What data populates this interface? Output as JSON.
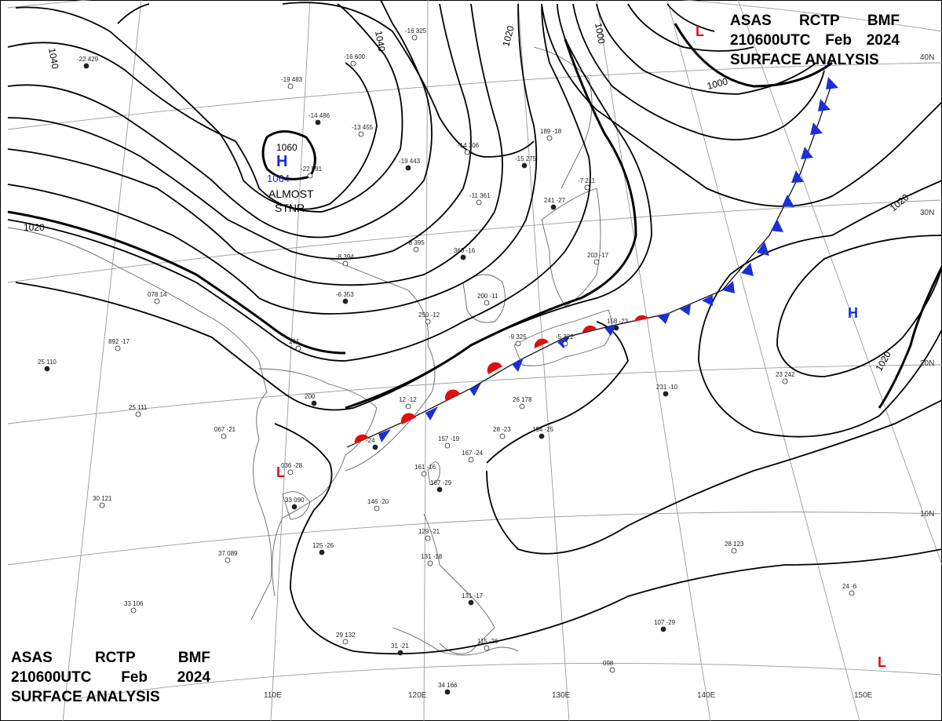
{
  "header": {
    "line1": [
      "ASAS",
      "RCTP",
      "BMF"
    ],
    "line2": [
      "210600UTC",
      "Feb",
      "2024"
    ],
    "line3": "SURFACE ANALYSIS"
  },
  "latitudes": [
    "40N",
    "30N",
    "20N",
    "10N"
  ],
  "longitudes": [
    "110E",
    "120E",
    "130E",
    "140E",
    "150E"
  ],
  "isobar_labels": [
    "1040",
    "1040",
    "1020",
    "1000",
    "1000",
    "1020",
    "1020",
    "1020",
    "1060"
  ],
  "pressure_centers": [
    {
      "type": "H",
      "value": "1064",
      "note_line1": "ALMOST",
      "note_line2": "STNR",
      "color": "#1a2fd6"
    },
    {
      "type": "H",
      "color": "#1a2fd6"
    },
    {
      "type": "L",
      "color": "#e01010"
    },
    {
      "type": "L",
      "color": "#e01010"
    },
    {
      "type": "L",
      "color": "#e01010"
    }
  ],
  "stations": [
    "-22 429",
    "-19 483",
    "-16 600",
    "-14 486",
    "-22 591",
    "-13 455",
    "-19 443",
    "-16 325",
    "-14 306",
    "-15 275",
    "189 -18",
    "-11 361",
    "241 -27",
    "-7 211",
    "-8 395",
    "360 -16",
    "-8 394",
    "203 -17",
    "-6 353",
    "200 -11",
    "250 -12",
    "158 -23",
    "078 14",
    "892 -17",
    "25 110",
    "25 111",
    "261",
    "200",
    "12 -12",
    "26 178",
    "231 -10",
    "23 242",
    "28 -23",
    "-24",
    "157 -19",
    "167 -24",
    "194 -25",
    "067 -21",
    "036 -28",
    "33 090",
    "146 -20",
    "161 -16",
    "167 -29",
    "30 121",
    "37 089",
    "125 -26",
    "129 -21",
    "131 -18",
    "131 -17",
    "33 106",
    "29 132",
    "31 -21",
    "115 -26",
    "098",
    "107 -29",
    "28 123",
    "24 -6",
    "34 166",
    "-9 325",
    "-5 322"
  ],
  "colors": {
    "warm_front": "#e01010",
    "cold_front": "#1a2fd6",
    "isobar": "#000000",
    "grid": "#9a9a9a",
    "coast": "#666666"
  }
}
